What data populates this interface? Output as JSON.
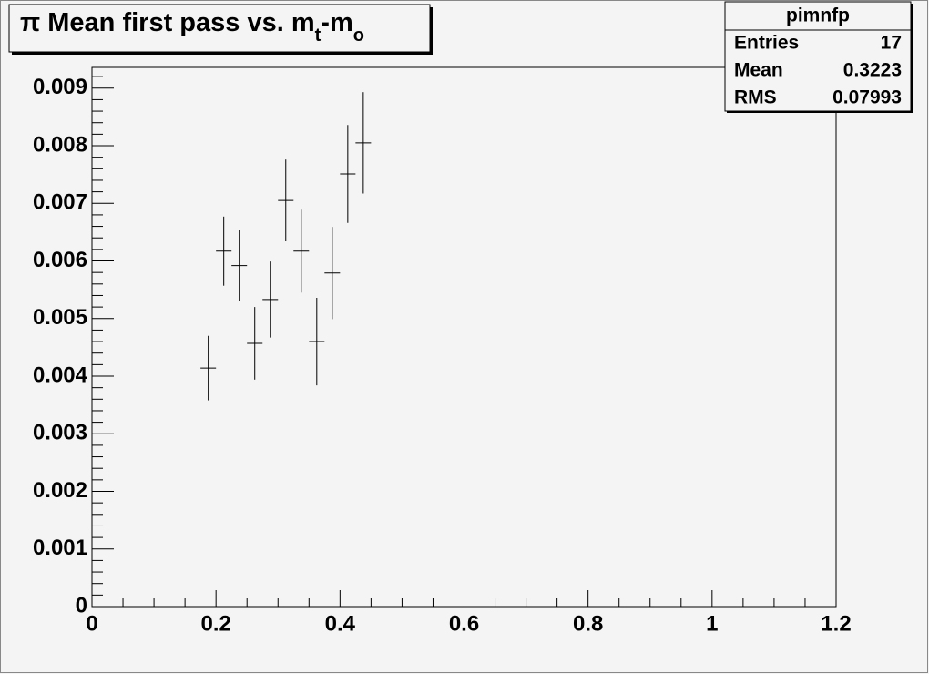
{
  "chart_data": {
    "type": "errorbar",
    "title": [
      {
        "text": "π Mean first pass vs. m"
      },
      {
        "text": "t",
        "sub": true
      },
      {
        "text": "-m"
      },
      {
        "text": "o",
        "sub": true
      }
    ],
    "stats": {
      "name": "pimnfp",
      "rows": [
        {
          "label": "Entries",
          "value": "17"
        },
        {
          "label": "Mean",
          "value": "0.3223"
        },
        {
          "label": "RMS",
          "value": "0.07993"
        }
      ]
    },
    "x": [
      0.1875,
      0.2125,
      0.2375,
      0.2625,
      0.2875,
      0.3125,
      0.3375,
      0.3625,
      0.3875,
      0.4125,
      0.4375
    ],
    "values": [
      0.00414,
      0.00617,
      0.00592,
      0.00457,
      0.00533,
      0.00705,
      0.00617,
      0.0046,
      0.00579,
      0.00751,
      0.00805
    ],
    "errors": [
      0.00056,
      0.0006,
      0.00061,
      0.00063,
      0.00066,
      0.00071,
      0.00072,
      0.00076,
      0.0008,
      0.00085,
      0.00088
    ],
    "xerr": 0.0125,
    "color": "#000000",
    "xlim": [
      0,
      1.2
    ],
    "ylim": [
      0,
      0.00936
    ],
    "xticks": [
      0,
      0.2,
      0.4,
      0.6,
      0.8,
      1,
      1.2
    ],
    "yticks": [
      0,
      0.001,
      0.002,
      0.003,
      0.004,
      0.005,
      0.006,
      0.007,
      0.008,
      0.009
    ],
    "xminor_divisions": 4,
    "yminor_divisions": 5
  }
}
